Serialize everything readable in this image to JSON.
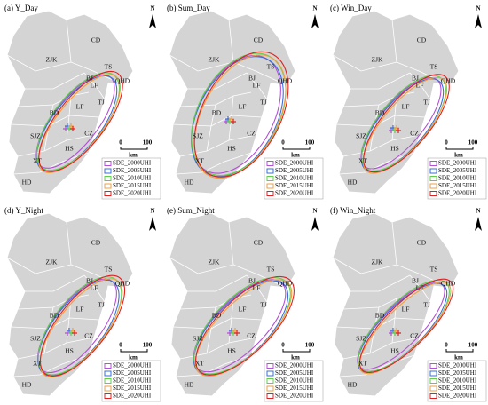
{
  "panels": [
    {
      "title": "(a) Y_Day",
      "north": "N",
      "scale": [
        "0",
        "100",
        "km"
      ],
      "regions": [
        "CD",
        "ZJK",
        "QHD",
        "TS",
        "BJ",
        "LF",
        "TJ",
        "LF",
        "BD",
        "SJZ",
        "CZ",
        "HS",
        "XT",
        "HD"
      ],
      "legend": [
        "SDE_2000UHI",
        "SDE_2005UHI",
        "SDE_2010UHI",
        "SDE_2015UHI",
        "SDE_2020UHI"
      ]
    },
    {
      "title": "(b) Sum_Day",
      "north": "N",
      "scale": [
        "0",
        "100",
        "km"
      ],
      "regions": [
        "CD",
        "ZJK",
        "QHD",
        "TS",
        "BJ",
        "LF",
        "TJ",
        "LF",
        "BD",
        "SJZ",
        "CZ",
        "HS",
        "XT",
        "HD"
      ],
      "legend": [
        "SDE_2000UHI",
        "SDE_2005UHI",
        "SDE_2010UHI",
        "SDE_2015UHI",
        "SDE_2020UHI"
      ]
    },
    {
      "title": "(c) Win_Day",
      "north": "N",
      "scale": [
        "0",
        "100",
        "km"
      ],
      "regions": [
        "CD",
        "ZJK",
        "QHD",
        "TS",
        "BJ",
        "LF",
        "TJ",
        "LF",
        "BD",
        "SJZ",
        "CZ",
        "HS",
        "XT",
        "HD"
      ],
      "legend": [
        "SDE_2000UHI",
        "SDE_2005UHI",
        "SDE_2010UHI",
        "SDE_2015UHI",
        "SDE_2020UHI"
      ]
    },
    {
      "title": "(d) Y_Night",
      "north": "N",
      "scale": [
        "0",
        "100",
        "km"
      ],
      "regions": [
        "CD",
        "ZJK",
        "QHD",
        "TS",
        "BJ",
        "LF",
        "TJ",
        "LF",
        "BD",
        "SJZ",
        "CZ",
        "HS",
        "XT",
        "HD"
      ],
      "legend": [
        "SDE_2000UHI",
        "SDE_2005UHI",
        "SDE_2010UHI",
        "SDE_2015UHI",
        "SDE_2020UHI"
      ]
    },
    {
      "title": "(e) Sum_Night",
      "north": "N",
      "scale": [
        "0",
        "100",
        "km"
      ],
      "regions": [
        "CD",
        "ZJK",
        "QHD",
        "TS",
        "BJ",
        "LF",
        "TJ",
        "LF",
        "BD",
        "SJZ",
        "CZ",
        "HS",
        "XT",
        "HD"
      ],
      "legend": [
        "SDE_2000UHI",
        "SDE_2005UHI",
        "SDE_2010UHI",
        "SDE_2015UHI",
        "SDE_2020UHI"
      ]
    },
    {
      "title": "(f) Win_Night",
      "north": "N",
      "scale": [
        "0",
        "100",
        "km"
      ],
      "regions": [
        "CD",
        "ZJK",
        "QHD",
        "TS",
        "BJ",
        "LF",
        "TJ",
        "LF",
        "BD",
        "SJZ",
        "CZ",
        "HS",
        "XT",
        "HD"
      ],
      "legend": [
        "SDE_2000UHI",
        "SDE_2005UHI",
        "SDE_2010UHI",
        "SDE_2015UHI",
        "SDE_2020UHI"
      ]
    }
  ]
}
